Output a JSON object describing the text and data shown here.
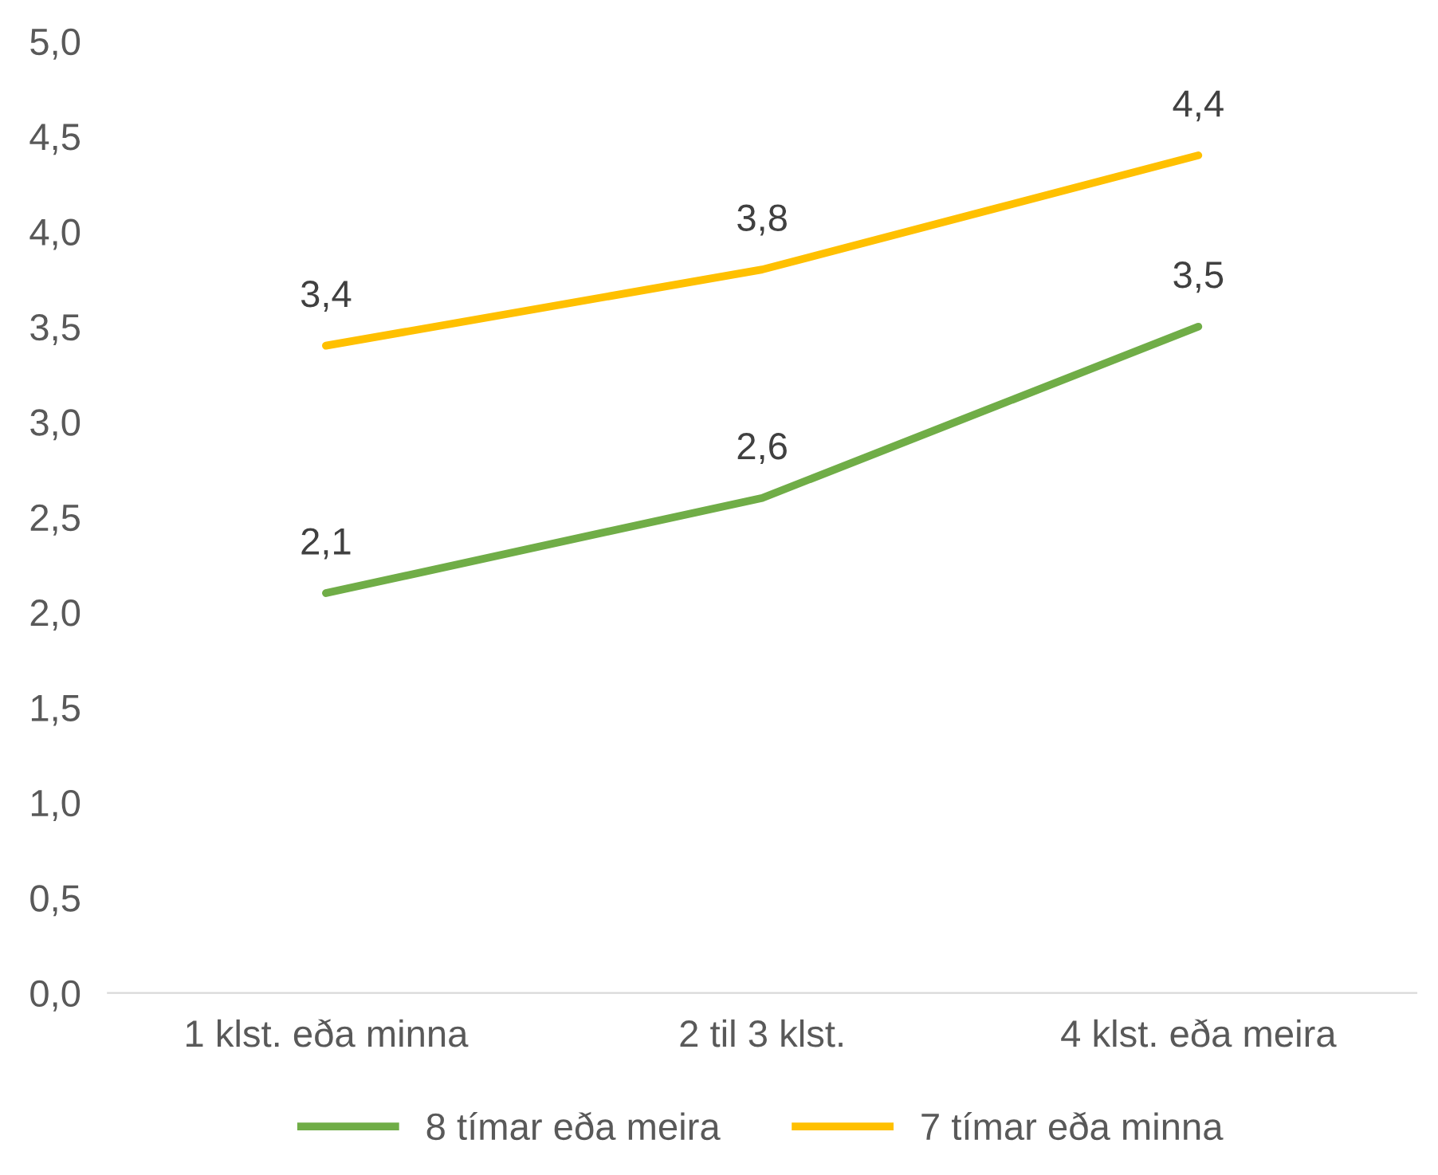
{
  "chart_data": {
    "type": "line",
    "categories": [
      "1 klst. eða minna",
      "2 til 3 klst.",
      "4 klst. eða meira"
    ],
    "series": [
      {
        "name": "8 tímar eða meira",
        "color": "#70ad47",
        "values": [
          2.1,
          2.6,
          3.5
        ],
        "value_labels": [
          "2,1",
          "2,6",
          "3,5"
        ]
      },
      {
        "name": "7 tímar eða minna",
        "color": "#ffc000",
        "values": [
          3.4,
          3.8,
          4.4
        ],
        "value_labels": [
          "3,4",
          "3,8",
          "4,4"
        ]
      }
    ],
    "ylim": [
      0,
      5
    ],
    "yticks": [
      {
        "value": 0,
        "label": "0,0"
      },
      {
        "value": 0.5,
        "label": "0,5"
      },
      {
        "value": 1,
        "label": "1,0"
      },
      {
        "value": 1.5,
        "label": "1,5"
      },
      {
        "value": 2,
        "label": "2,0"
      },
      {
        "value": 2.5,
        "label": "2,5"
      },
      {
        "value": 3,
        "label": "3,0"
      },
      {
        "value": 3.5,
        "label": "3,5"
      },
      {
        "value": 4,
        "label": "4,0"
      },
      {
        "value": 4.5,
        "label": "4,5"
      },
      {
        "value": 5,
        "label": "5,0"
      }
    ],
    "grid": false,
    "legend": "bottom",
    "marker": "none",
    "line_style": "solid"
  }
}
